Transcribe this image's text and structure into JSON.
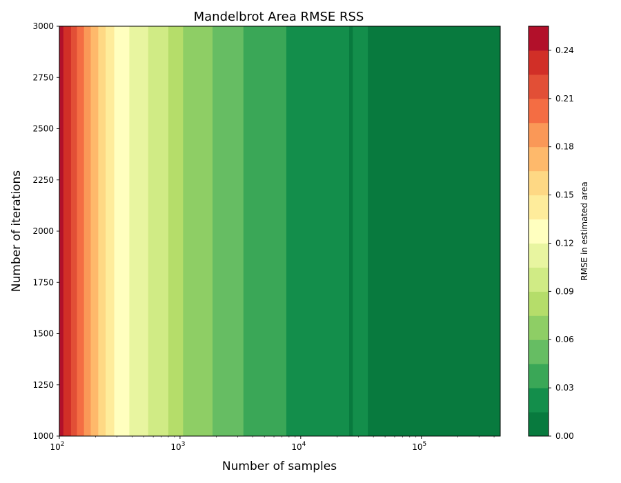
{
  "chart_data": {
    "type": "heatmap",
    "subtype": "filled-contour",
    "title": "Mandelbrot Area RMSE RSS",
    "xlabel": "Number of samples",
    "ylabel": "Number of iterations",
    "xscale": "log",
    "xlim": [
      100,
      450000
    ],
    "ylim": [
      1000,
      3000
    ],
    "x_ticks": [
      100,
      1000,
      10000,
      100000
    ],
    "x_tick_labels": [
      "10",
      "10",
      "10",
      "10"
    ],
    "x_tick_exponents": [
      "2",
      "3",
      "4",
      "5"
    ],
    "y_ticks": [
      1000,
      1250,
      1500,
      1750,
      2000,
      2250,
      2500,
      2750,
      3000
    ],
    "y_tick_labels": [
      "1000",
      "1250",
      "1500",
      "1750",
      "2000",
      "2250",
      "2500",
      "2750",
      "3000"
    ],
    "colorbar": {
      "label": "RMSE in estimated area",
      "range": [
        0,
        0.255
      ],
      "ticks": [
        0,
        0.03,
        0.06,
        0.09,
        0.12,
        0.15,
        0.18,
        0.21,
        0.24
      ],
      "tick_labels": [
        "0.00",
        "0.03",
        "0.06",
        "0.09",
        "0.12",
        "0.15",
        "0.18",
        "0.21",
        "0.24"
      ],
      "level_step": 0.015,
      "colormap": "RdYlGn_r",
      "colors": [
        "#087a3e",
        "#138e4b",
        "#3aa757",
        "#66bd63",
        "#8ece65",
        "#b5dd6a",
        "#d0eb85",
        "#e8f5a0",
        "#ffffbf",
        "#feec9b",
        "#fed884",
        "#feb96b",
        "#fa9857",
        "#f46d43",
        "#e24f36",
        "#d12f27",
        "#b2102a"
      ]
    },
    "bands": [
      {
        "x_start": 100,
        "x_end": 108,
        "level": 15
      },
      {
        "x_start": 108,
        "x_end": 125,
        "level": 14
      },
      {
        "x_start": 125,
        "x_end": 140,
        "level": 13
      },
      {
        "x_start": 140,
        "x_end": 160,
        "level": 12
      },
      {
        "x_start": 160,
        "x_end": 182,
        "level": 11
      },
      {
        "x_start": 182,
        "x_end": 210,
        "level": 10
      },
      {
        "x_start": 210,
        "x_end": 242,
        "level": 9
      },
      {
        "x_start": 242,
        "x_end": 285,
        "level": 8
      },
      {
        "x_start": 285,
        "x_end": 380,
        "level": 7
      },
      {
        "x_start": 380,
        "x_end": 545,
        "level": 6
      },
      {
        "x_start": 545,
        "x_end": 800,
        "level": 5
      },
      {
        "x_start": 800,
        "x_end": 1060,
        "level": 4
      },
      {
        "x_start": 1060,
        "x_end": 1860,
        "level": 3
      },
      {
        "x_start": 1860,
        "x_end": 3350,
        "level": 2
      },
      {
        "x_start": 3350,
        "x_end": 7600,
        "level": 1
      },
      {
        "x_start": 7600,
        "x_end": 25200,
        "level": 0
      },
      {
        "x_start": 25200,
        "x_end": 27000,
        "level": -1
      },
      {
        "x_start": 27000,
        "x_end": 36000,
        "level": 0
      },
      {
        "x_start": 36000,
        "x_end": 450000,
        "level": -1
      }
    ]
  }
}
